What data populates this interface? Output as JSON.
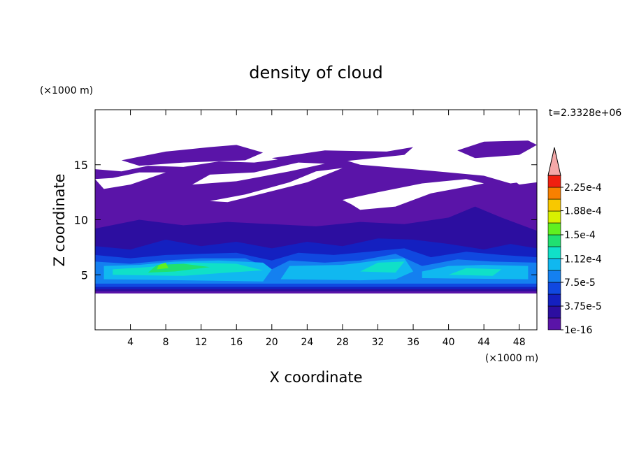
{
  "chart_data": {
    "type": "contour",
    "title": "density of cloud",
    "x_label": "X coordinate",
    "y_label": "Z coordinate",
    "x_unit": "(×1000 m)",
    "y_unit": "(×1000 m)",
    "time_label": "t=2.3328e+06",
    "xlim": [
      0,
      50
    ],
    "ylim": [
      0,
      20
    ],
    "xticks": [
      4,
      8,
      12,
      16,
      20,
      24,
      28,
      32,
      36,
      40,
      44,
      48
    ],
    "yticks": [
      5,
      10,
      15
    ],
    "colorbar": {
      "ticks": [
        {
          "value": 1e-16,
          "label": "1e-16"
        },
        {
          "value": 3.75e-05,
          "label": "3.75e-5"
        },
        {
          "value": 7.5e-05,
          "label": "7.5e-5"
        },
        {
          "value": 0.000112,
          "label": "1.12e-4"
        },
        {
          "value": 0.00015,
          "label": "1.5e-4"
        },
        {
          "value": 0.000188,
          "label": "1.88e-4"
        },
        {
          "value": 0.000225,
          "label": "2.25e-4"
        }
      ],
      "colors": [
        "#5a14a8",
        "#2c0ea0",
        "#1420c0",
        "#1048e0",
        "#1480f0",
        "#10b8f0",
        "#10e0c8",
        "#20e070",
        "#60f020",
        "#d8f000",
        "#f8c800",
        "#f88000",
        "#f02010"
      ],
      "extend_color": "#f4a8a8"
    }
  }
}
